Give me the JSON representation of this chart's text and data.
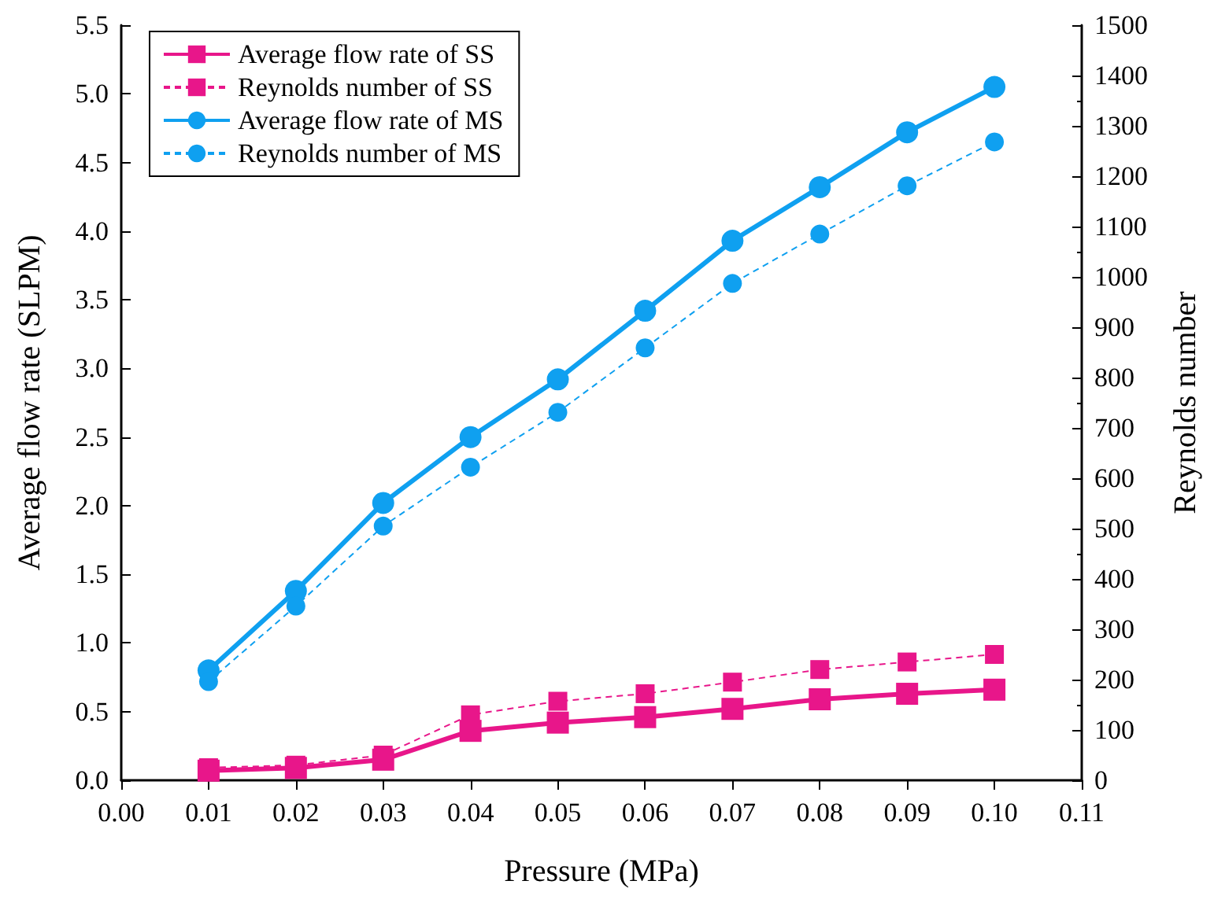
{
  "chart_data": {
    "type": "line",
    "xlabel": "Pressure (MPa)",
    "ylabel": "Average flow rate (SLPM)",
    "y2label": "Reynolds number",
    "x": [
      0.01,
      0.02,
      0.03,
      0.04,
      0.05,
      0.06,
      0.07,
      0.08,
      0.09,
      0.1
    ],
    "xlim": [
      0,
      0.11
    ],
    "xticks": [
      {
        "value": 0,
        "label": "0.00"
      },
      0.01,
      0.02,
      0.03,
      0.04,
      0.05,
      0.06,
      0.07,
      0.08,
      0.09,
      {
        "value": 0.1,
        "label": "0.10"
      },
      0.11
    ],
    "ylim": [
      0,
      5.5
    ],
    "yticks": [
      {
        "value": 0,
        "label": "0.0"
      },
      0.5,
      {
        "value": 1,
        "label": "1.0"
      },
      1.5,
      {
        "value": 2,
        "label": "2.0"
      },
      2.5,
      {
        "value": 3,
        "label": "3.0"
      },
      3.5,
      {
        "value": 4,
        "label": "4.0"
      },
      4.5,
      {
        "value": 5,
        "label": "5.0"
      },
      5.5
    ],
    "y2lim": [
      0,
      1500
    ],
    "y2ticks": [
      0,
      100,
      200,
      300,
      400,
      500,
      600,
      700,
      800,
      900,
      1000,
      1100,
      1200,
      1300,
      1400,
      1500
    ],
    "grid": false,
    "legend": "top left",
    "series": [
      {
        "name": "Average flow rate of SS",
        "color": "#e8168a",
        "marker": "square",
        "line_style": "solid",
        "values": [
          0.07,
          0.09,
          0.15,
          0.36,
          0.42,
          0.46,
          0.52,
          0.59,
          0.63,
          0.66
        ]
      },
      {
        "name": "Reynolds number of SS",
        "color": "#e8168a",
        "marker": "square",
        "line_style": "dashed",
        "axis": "y2",
        "values": [
          25,
          30,
          50,
          130,
          157,
          172,
          195,
          220,
          235,
          250
        ]
      },
      {
        "name": "Average flow rate of MS",
        "color": "#0fa0f0",
        "marker": "circle",
        "line_style": "solid",
        "values": [
          0.8,
          1.38,
          2.02,
          2.5,
          2.92,
          3.42,
          3.93,
          4.32,
          4.72,
          5.05
        ]
      },
      {
        "name": "Reynolds number of MS",
        "color": "#0fa0f0",
        "marker": "circle",
        "line_style": "dashed",
        "axis": "y2",
        "values": [
          196,
          346,
          505,
          622,
          731,
          859,
          987,
          1085,
          1181,
          1268
        ]
      }
    ]
  }
}
